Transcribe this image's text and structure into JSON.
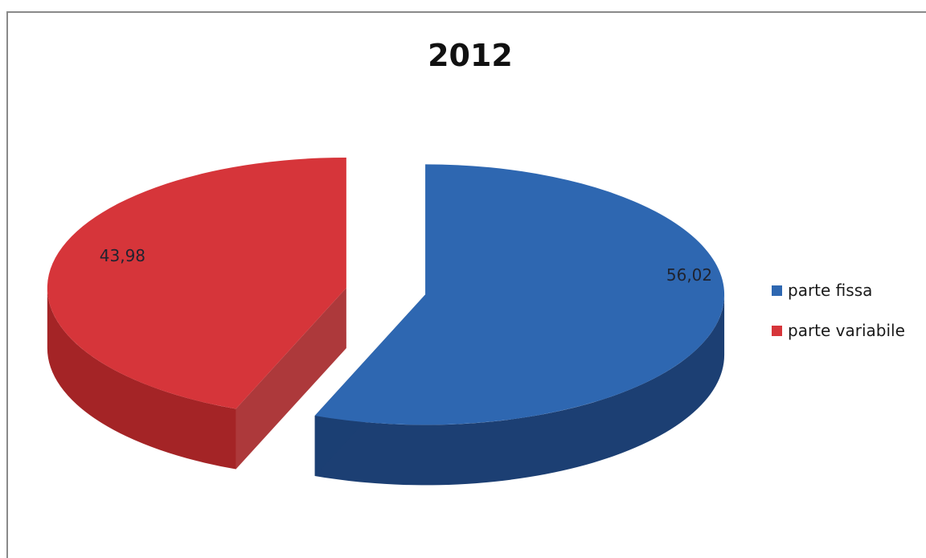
{
  "chart_data": {
    "type": "pie",
    "title": "2012",
    "labels": [
      "parte fissa",
      "parte variabile"
    ],
    "values": [
      56.02,
      43.98
    ],
    "data_labels": [
      "56,02",
      "43,98"
    ],
    "colors": [
      "#2e67b1",
      "#d6353a"
    ],
    "side_colors": [
      "#1c3f73",
      "#a42426"
    ],
    "exploded": true,
    "three_d": true,
    "legend_position": "right"
  }
}
